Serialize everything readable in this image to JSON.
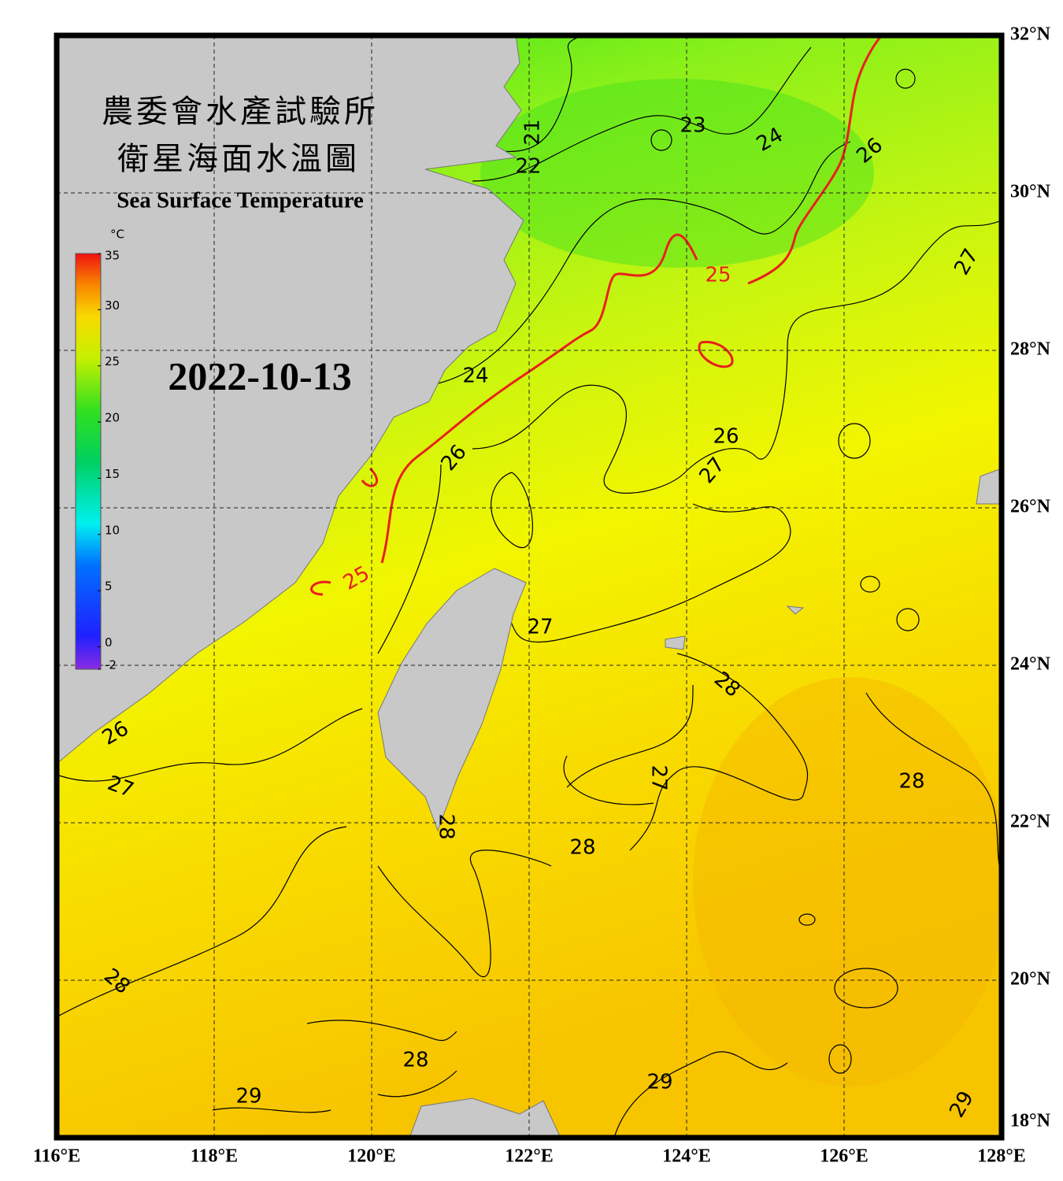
{
  "map": {
    "title_zh_1": "農委會水產試驗所",
    "title_zh_2": "衛星海面水溫圖",
    "title_en": "Sea Surface Temperature",
    "date": "2022-10-13",
    "xlim": [
      116,
      128
    ],
    "ylim": [
      18,
      32
    ],
    "grid": true,
    "xticks": [
      {
        "value": 116,
        "label": "116°E"
      },
      {
        "value": 118,
        "label": "118°E"
      },
      {
        "value": 120,
        "label": "120°E"
      },
      {
        "value": 122,
        "label": "122°E"
      },
      {
        "value": 124,
        "label": "124°E"
      },
      {
        "value": 126,
        "label": "126°E"
      },
      {
        "value": 128,
        "label": "128°E"
      }
    ],
    "yticks": [
      {
        "value": 32,
        "label": "32°N"
      },
      {
        "value": 30,
        "label": "30°N"
      },
      {
        "value": 28,
        "label": "28°N"
      },
      {
        "value": 26,
        "label": "26°N"
      },
      {
        "value": 24,
        "label": "24°N"
      },
      {
        "value": 22,
        "label": "22°N"
      },
      {
        "value": 20,
        "label": "20°N"
      },
      {
        "value": 18,
        "label": "18°N"
      }
    ],
    "colorbar": {
      "unit": "°C",
      "lim": [
        -2,
        35
      ],
      "ticks": [
        35,
        30,
        25,
        20,
        15,
        10,
        5,
        0,
        -2
      ]
    },
    "highlight_contour": 25,
    "highlight_color": "#e8201c",
    "contour_labels": [
      21,
      22,
      23,
      24,
      26,
      25,
      27,
      24,
      26,
      26,
      27,
      25,
      27,
      28,
      26,
      27,
      27,
      28,
      28,
      28,
      28,
      28,
      29,
      29,
      29
    ]
  }
}
